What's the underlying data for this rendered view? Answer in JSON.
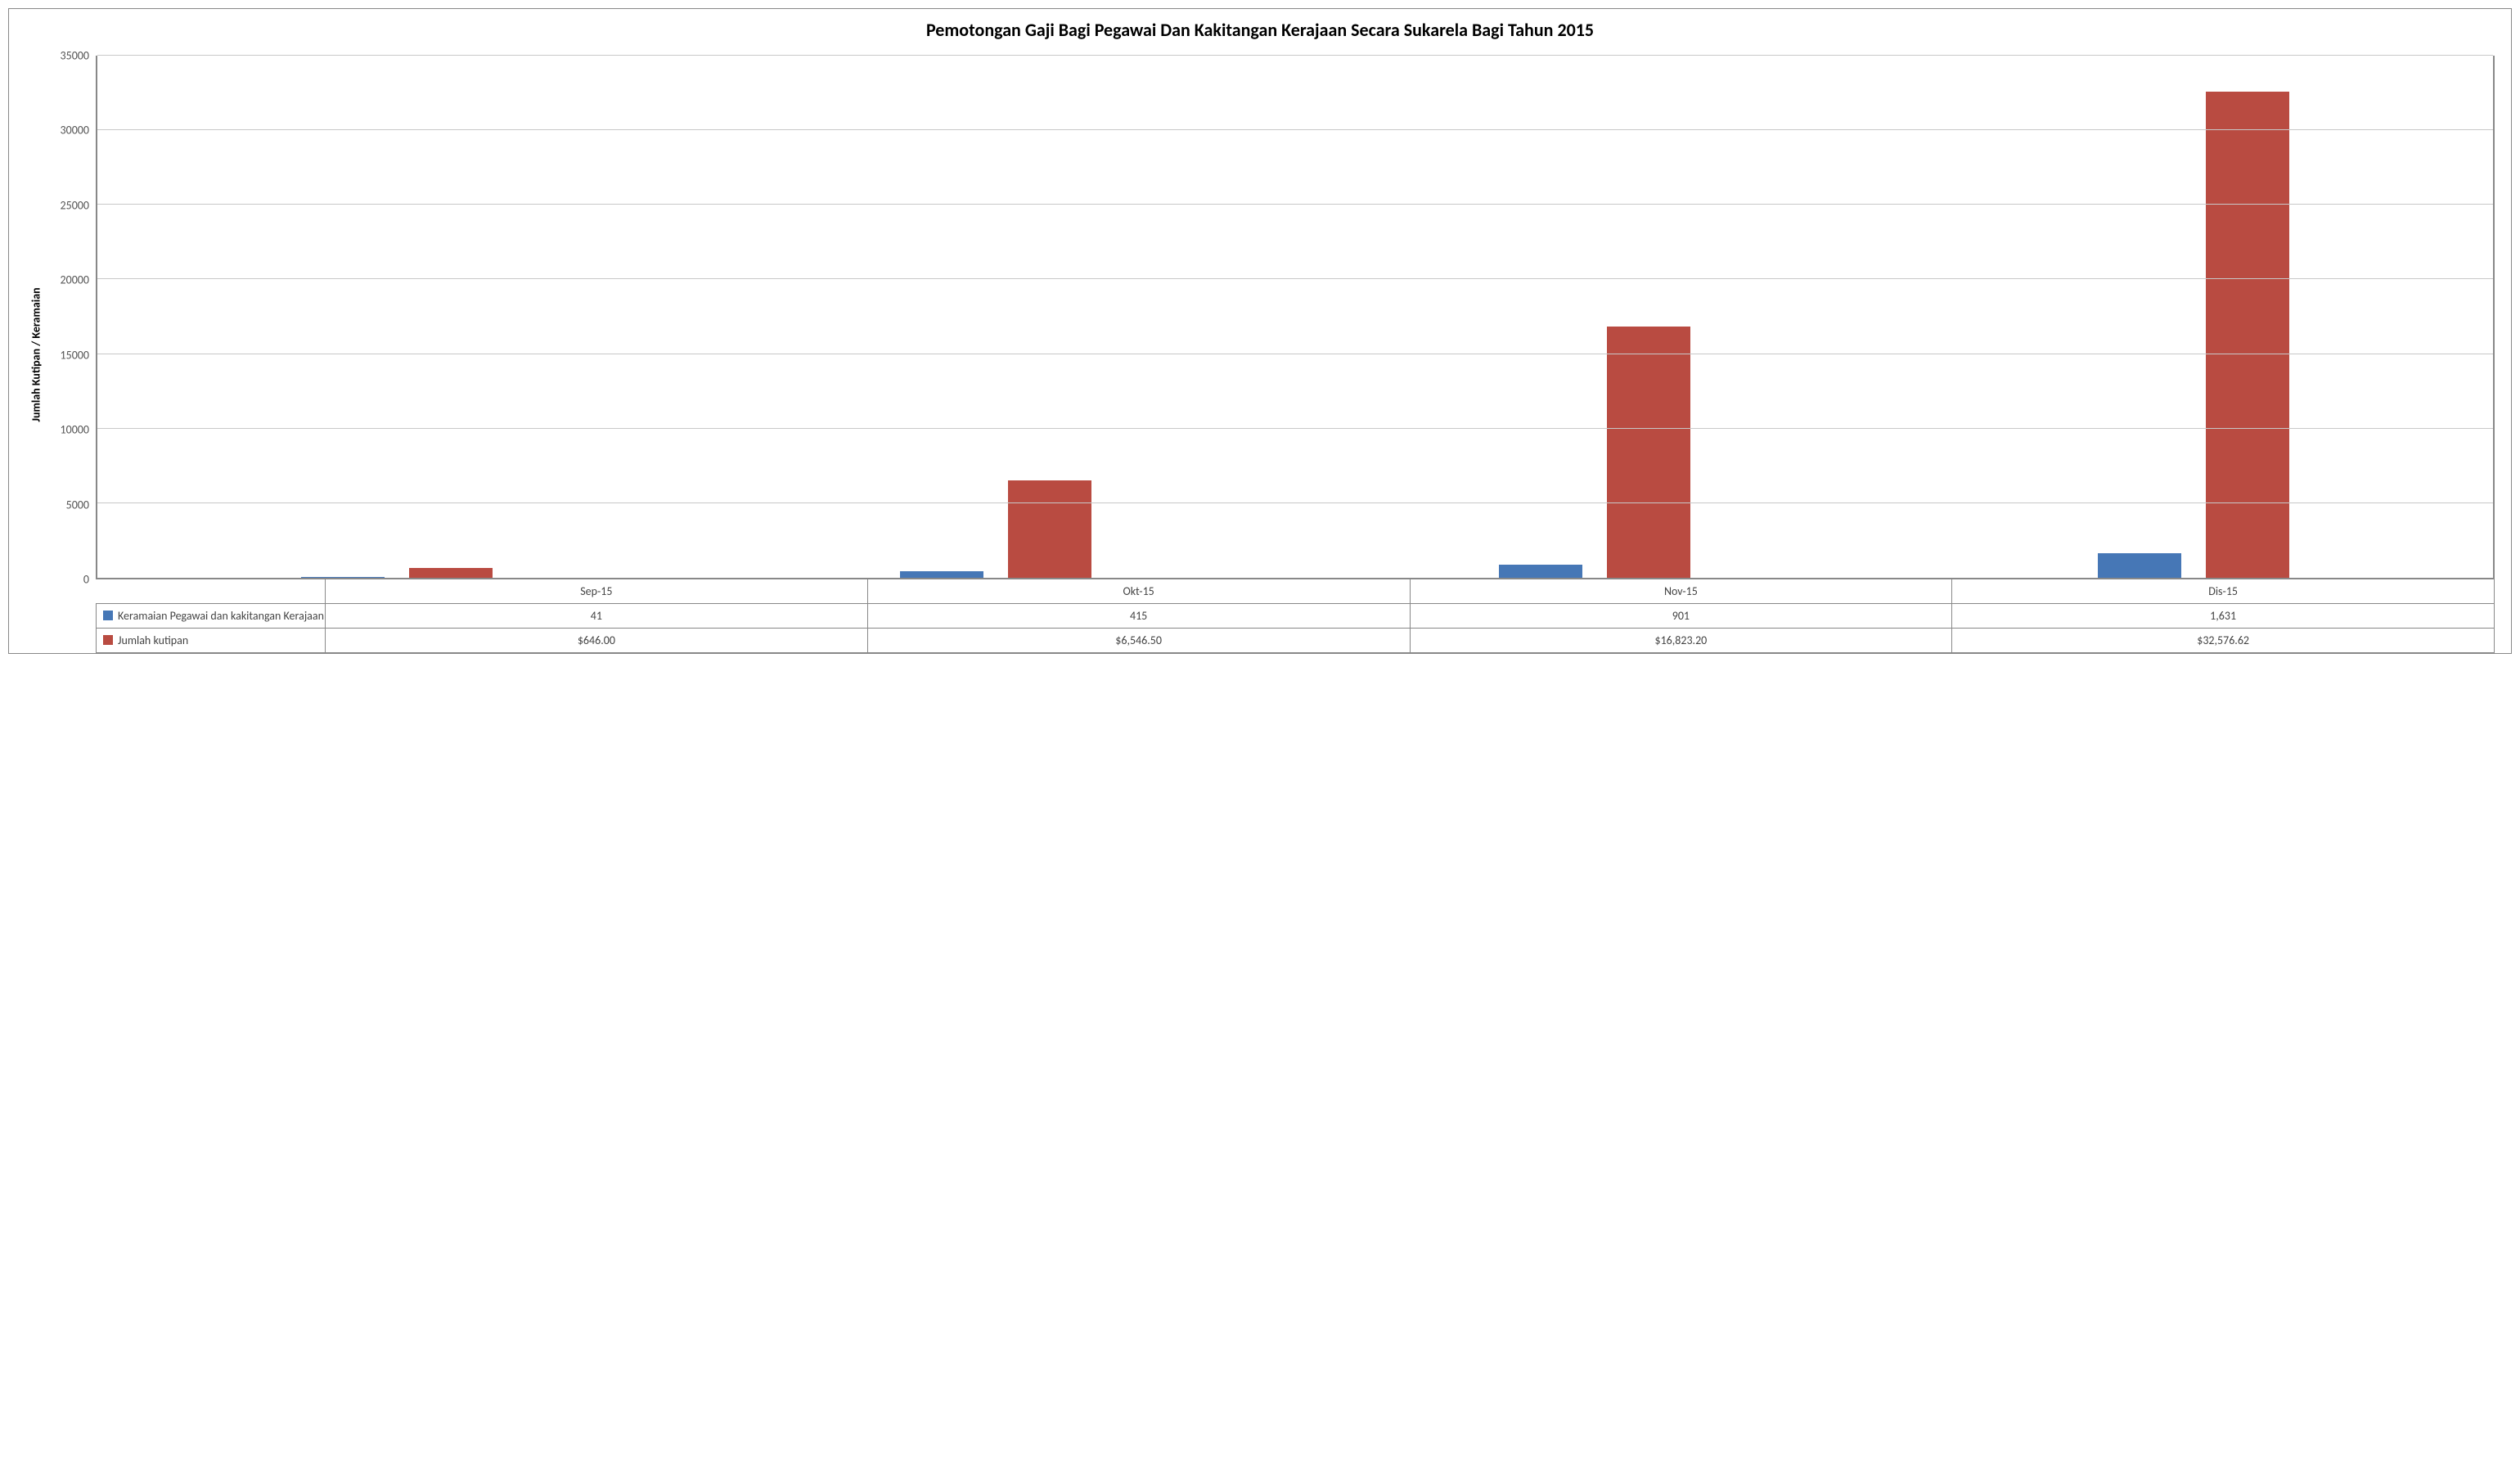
{
  "chart": {
    "type": "bar",
    "title": "Pemotongan Gaji Bagi Pegawai Dan Kakitangan Kerajaan Secara Sukarela Bagi Tahun 2015",
    "title_fontsize": 22,
    "ylabel": "Jumlah Kutipan / Keramaian",
    "ylabel_fontsize": 14,
    "ylim": [
      0,
      35000
    ],
    "ytick_step": 5000,
    "yticks": [
      0,
      5000,
      10000,
      15000,
      20000,
      25000,
      30000,
      35000
    ],
    "categories": [
      "Sep-15",
      "Okt-15",
      "Nov-15",
      "Dis-15"
    ],
    "series": [
      {
        "name": "Keramaian Pegawai dan kakitangan Kerajaan",
        "color": "#4677b6",
        "values": [
          41,
          415,
          901,
          1631
        ],
        "display_values": [
          "41",
          "415",
          "901",
          "1,631"
        ]
      },
      {
        "name": "Jumlah kutipan",
        "color": "#b94b41",
        "values": [
          646.0,
          6546.5,
          16823.2,
          32576.62
        ],
        "display_values": [
          "$646.00",
          "$6,546.50",
          "$16,823.20",
          "$32,576.62"
        ]
      }
    ],
    "colors": {
      "background": "#ffffff",
      "grid": "#c8c8c8",
      "axis": "#888888",
      "text": "#444444"
    },
    "bar_width_pct": 14,
    "bar_gap_pct": 4
  }
}
